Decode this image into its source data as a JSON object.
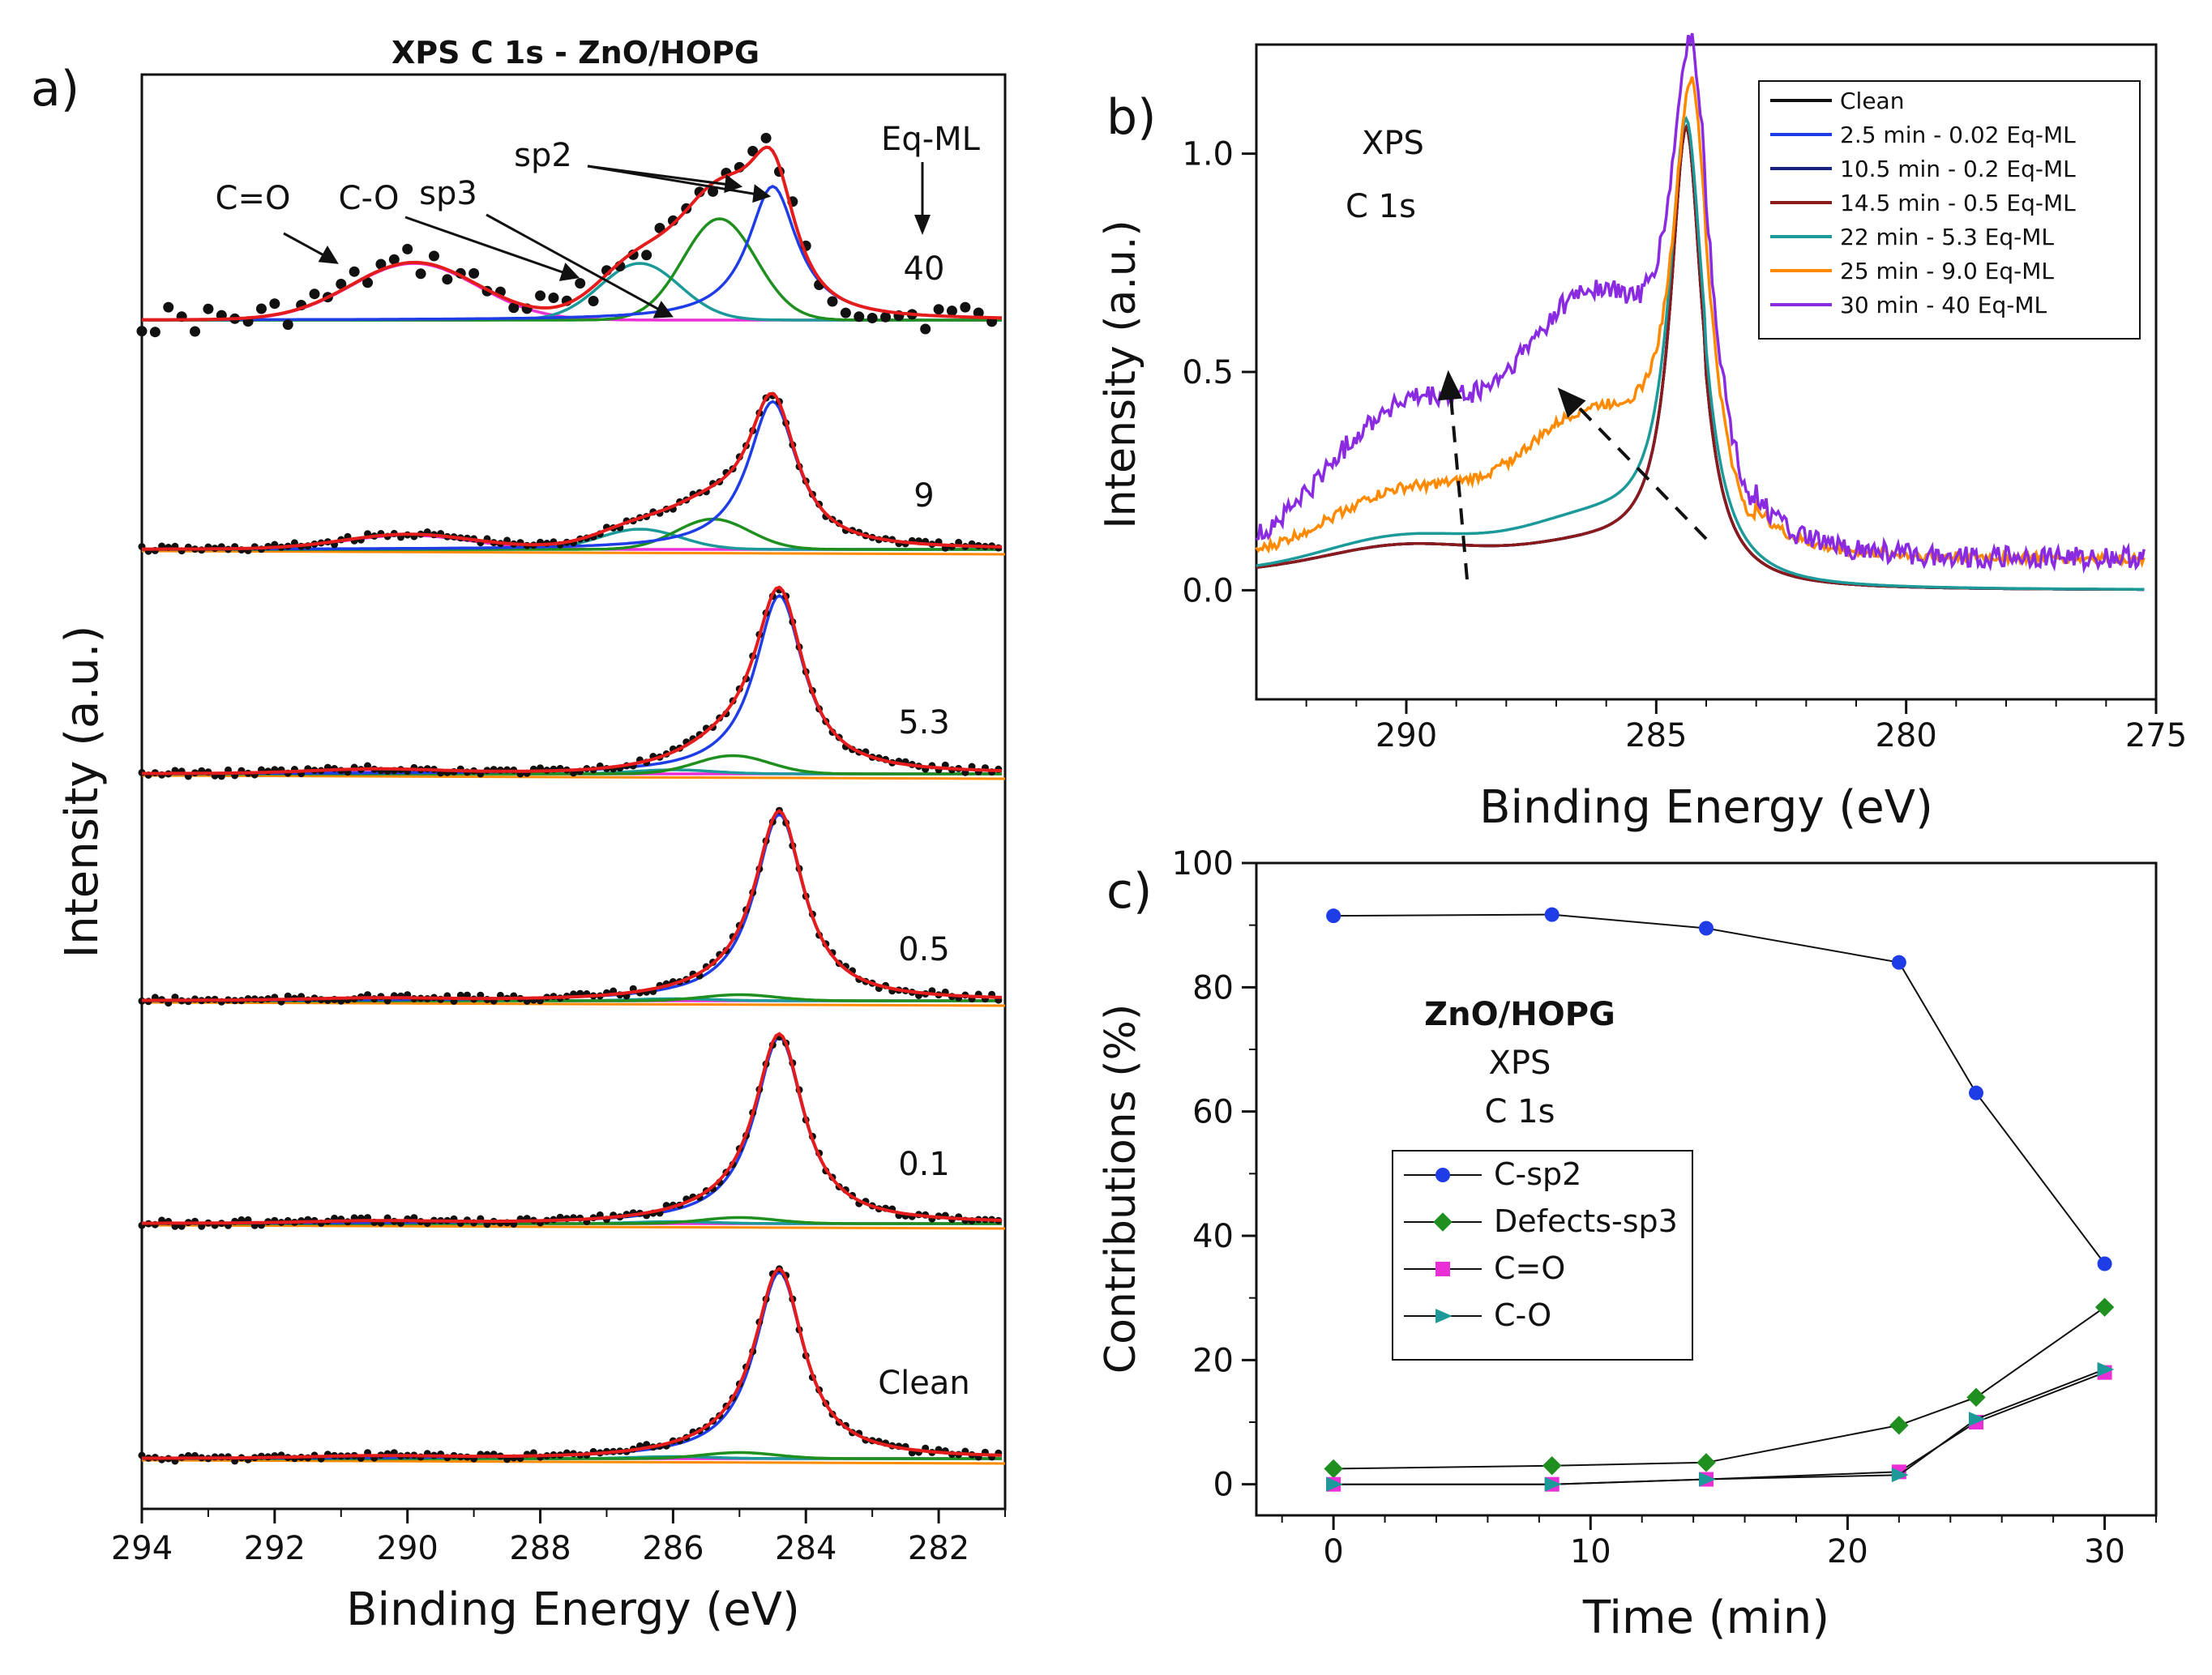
{
  "figure_title": "XPS C 1s - ZnO/HOPG",
  "colors": {
    "fit": "#e51c1c",
    "sp2": "#1f3de6",
    "sp3": "#1f8f1f",
    "co": "#1c9a9a",
    "cdo": "#ea2fd6",
    "orange": "#ff8a00",
    "data": "#111111",
    "clean": "#111111",
    "c2": "#1f3de6",
    "c3": "#1a237e",
    "c4": "#8b1a1a",
    "c5": "#1c9a9a",
    "c6": "#ff8a00",
    "c7": "#8a2be2"
  },
  "chart_data": [
    {
      "panel": "a",
      "panel_label": "a)",
      "type": "line",
      "title": "XPS C 1s - ZnO/HOPG",
      "xlabel": "Binding Energy (eV)",
      "ylabel": "Intensity (a.u.)",
      "xlim": [
        294,
        281
      ],
      "xticks": [
        "294",
        "292",
        "290",
        "288",
        "286",
        "284",
        "282"
      ],
      "stack_label_header": "Eq-ML",
      "annotations": [
        "C=O",
        "C-O",
        "sp3",
        "sp2"
      ],
      "components": [
        "Data",
        "Fit",
        "C-sp2",
        "Defects-sp3",
        "C-O",
        "C=O"
      ],
      "spectra": [
        {
          "label": "40",
          "sp2": {
            "center": 284.5,
            "height": 0.66
          },
          "sp3": {
            "center": 285.3,
            "height": 0.5
          },
          "co": {
            "center": 286.5,
            "height": 0.28
          },
          "cdo": {
            "center": 289.9,
            "height": 0.28
          }
        },
        {
          "label": "9",
          "sp2": {
            "center": 284.5,
            "height": 0.73
          },
          "sp3": {
            "center": 285.4,
            "height": 0.15
          },
          "co": {
            "center": 286.5,
            "height": 0.1
          },
          "cdo": {
            "center": 290.0,
            "height": 0.07
          }
        },
        {
          "label": "5.3",
          "sp2": {
            "center": 284.4,
            "height": 0.88
          },
          "sp3": {
            "center": 285.1,
            "height": 0.09
          },
          "co": {
            "center": 286.0,
            "height": 0.02
          },
          "cdo": {
            "center": 290.5,
            "height": 0.02
          }
        },
        {
          "label": "0.5",
          "sp2": {
            "center": 284.4,
            "height": 0.92
          },
          "sp3": {
            "center": 285.0,
            "height": 0.03
          },
          "co": {
            "center": 286.0,
            "height": 0.01
          },
          "cdo": {
            "center": 290.5,
            "height": 0.01
          }
        },
        {
          "label": "0.1",
          "sp2": {
            "center": 284.4,
            "height": 0.92
          },
          "sp3": {
            "center": 285.0,
            "height": 0.03
          },
          "co": {
            "center": 286.0,
            "height": 0.01
          },
          "cdo": {
            "center": 290.5,
            "height": 0.01
          }
        },
        {
          "label": "Clean",
          "sp2": {
            "center": 284.4,
            "height": 0.92
          },
          "sp3": {
            "center": 285.0,
            "height": 0.03
          },
          "co": {
            "center": 286.0,
            "height": 0.01
          },
          "cdo": {
            "center": 290.5,
            "height": 0.01
          }
        }
      ]
    },
    {
      "panel": "b",
      "panel_label": "b)",
      "type": "line",
      "xlabel": "Binding Energy (eV)",
      "ylabel": "Intensity (a.u.)",
      "xlim": [
        293,
        275
      ],
      "ylim": [
        -0.25,
        1.25
      ],
      "xticks": [
        "290",
        "285",
        "280",
        "275"
      ],
      "yticks": [
        "0.0",
        "0.5",
        "1.0"
      ],
      "annotation": [
        "XPS",
        "C 1s"
      ],
      "legend_position": "top-right",
      "series": [
        {
          "name": "Clean",
          "color_key": "clean",
          "peak": 284.4,
          "width": 0.55,
          "sat290": 0.06,
          "sh285": 0.05,
          "noise": 0
        },
        {
          "name": "2.5 min - 0.02 Eq-ML",
          "color_key": "c2",
          "peak": 284.4,
          "width": 0.55,
          "sat290": 0.06,
          "sh285": 0.05,
          "noise": 0
        },
        {
          "name": "10.5 min - 0.2 Eq-ML",
          "color_key": "c3",
          "peak": 284.4,
          "width": 0.55,
          "sat290": 0.06,
          "sh285": 0.05,
          "noise": 0
        },
        {
          "name": "14.5 min - 0.5 Eq-ML",
          "color_key": "c4",
          "peak": 284.4,
          "width": 0.55,
          "sat290": 0.06,
          "sh285": 0.05,
          "noise": 0
        },
        {
          "name": "22 min - 5.3 Eq-ML",
          "color_key": "c5",
          "peak": 284.4,
          "width": 0.6,
          "sat290": 0.08,
          "sh285": 0.1,
          "noise": 0
        },
        {
          "name": "25 min - 9.0 Eq-ML",
          "color_key": "c6",
          "peak": 284.3,
          "width": 0.65,
          "sat290": 0.16,
          "sh285": 0.3,
          "noise": 0.012
        },
        {
          "name": "30 min - 40 Eq-ML",
          "color_key": "c7",
          "peak": 284.3,
          "width": 0.7,
          "sat290": 0.35,
          "sh285": 0.55,
          "noise": 0.025
        }
      ]
    },
    {
      "panel": "c",
      "panel_label": "c)",
      "type": "line",
      "xlabel": "Time (min)",
      "ylabel": "Contributions (%)",
      "xlim": [
        -3,
        32
      ],
      "ylim": [
        -5,
        100
      ],
      "xticks": [
        "0",
        "10",
        "20",
        "30"
      ],
      "yticks": [
        "0",
        "20",
        "40",
        "60",
        "80",
        "100"
      ],
      "annotation": [
        "ZnO/HOPG",
        "XPS",
        "C 1s"
      ],
      "legend_position": "center-left",
      "x": [
        0,
        8.5,
        14.5,
        22,
        25,
        30
      ],
      "series": [
        {
          "name": "C-sp2",
          "marker": "circle",
          "color_key": "sp2",
          "values": [
            91.5,
            91.7,
            89.5,
            84,
            63,
            35.5
          ]
        },
        {
          "name": "Defects-sp3",
          "marker": "diamond",
          "color_key": "sp3",
          "values": [
            2.5,
            3,
            3.5,
            9.5,
            14,
            28.5
          ]
        },
        {
          "name": "C=O",
          "marker": "square",
          "color_key": "cdo",
          "values": [
            0,
            0,
            0.8,
            2,
            10,
            18
          ]
        },
        {
          "name": "C-O",
          "marker": "triangle",
          "color_key": "co",
          "values": [
            0,
            0,
            0.8,
            1.5,
            10.5,
            18.5
          ]
        }
      ]
    }
  ]
}
